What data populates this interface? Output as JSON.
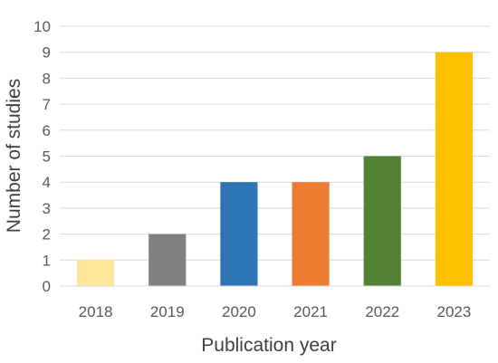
{
  "chart_data": {
    "type": "bar",
    "categories": [
      "2018",
      "2019",
      "2020",
      "2021",
      "2022",
      "2023"
    ],
    "values": [
      1,
      2,
      4,
      4,
      5,
      9
    ],
    "colors": [
      "#ffe699",
      "#7f7f7f",
      "#2e75b6",
      "#ed7d31",
      "#548235",
      "#ffc000"
    ],
    "xlabel": "Publication year",
    "ylabel": "Number of studies",
    "ylim": [
      0,
      10
    ],
    "yticks": [
      "0",
      "1",
      "2",
      "3",
      "4",
      "5",
      "6",
      "7",
      "8",
      "9",
      "10"
    ],
    "grid": true,
    "legend": "none"
  }
}
